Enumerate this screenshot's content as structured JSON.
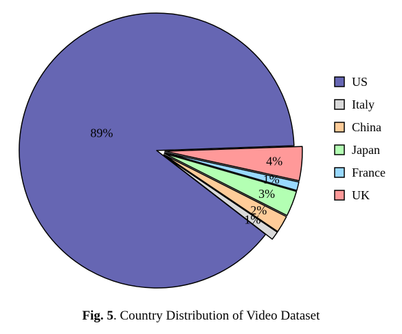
{
  "chart_data": {
    "type": "pie",
    "title": "",
    "series": [
      {
        "name": "US",
        "value": 89,
        "label": "89%",
        "color": "#6666B3"
      },
      {
        "name": "Italy",
        "value": 1,
        "label": "1%",
        "color": "#D9D9D9"
      },
      {
        "name": "China",
        "value": 2,
        "label": "2%",
        "color": "#FFCC99"
      },
      {
        "name": "Japan",
        "value": 3,
        "label": "3%",
        "color": "#B3FFB3"
      },
      {
        "name": "France",
        "value": 1,
        "label": "1%",
        "color": "#99D9FF"
      },
      {
        "name": "UK",
        "value": 4,
        "label": "4%",
        "color": "#FF9999"
      }
    ],
    "exploded": [
      "Italy",
      "China",
      "Japan",
      "France",
      "UK"
    ],
    "legend": "right"
  },
  "caption": {
    "figure_label": "Fig. 5",
    "text": ". Country Distribution of Video Dataset"
  }
}
